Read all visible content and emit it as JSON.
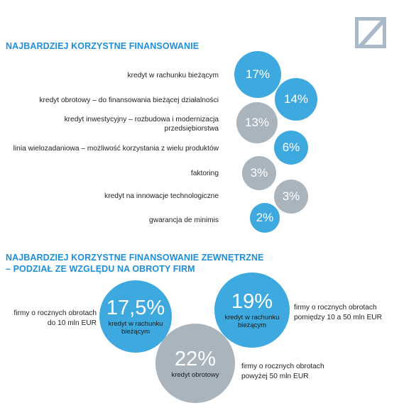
{
  "logo": "deutsche-bank-logo",
  "colors": {
    "accent": "#1e8fd8",
    "blue_bubble": "#3ea9de",
    "grey_bubble": "#a9b4bd"
  },
  "chart_data": [
    {
      "type": "bubble",
      "title": "NAJBARDZIEJ KORZYSTNE FINANSOWANIE",
      "unit": "%",
      "categories": [
        "kredyt w rachunku bieżącym",
        "kredyt obrotowy – do finansowania bieżącej działalności",
        "kredyt inwestycyjny – rozbudowa i modernizacja przedsiębiorstwa",
        "linia wielozadaniowa – możliwość korzystania z wielu produktów",
        "faktoring",
        "kredyt na innowacje technologiczne",
        "gwarancja de minimis"
      ],
      "values": [
        17,
        14,
        13,
        6,
        3,
        3,
        2
      ],
      "labels": [
        "17%",
        "14%",
        "13%",
        "6%",
        "3%",
        "3%",
        "2%"
      ],
      "colors": [
        "blue",
        "blue",
        "grey",
        "blue",
        "grey",
        "grey",
        "blue"
      ]
    },
    {
      "type": "bubble",
      "title_line1": "NAJBARDZIEJ KORZYSTNE FINANSOWANIE ZEWNĘTRZNE",
      "title_line2": "– PODZIAŁ ZE WZGLĘDU NA OBROTY FIRM",
      "unit": "%",
      "segments": [
        {
          "segment_line1": "firmy o rocznych obrotach",
          "segment_line2": "do 10 mln EUR",
          "value": 17.5,
          "label": "17,5%",
          "product_line1": "kredyt w rachunku",
          "product_line2": "bieżącym",
          "color": "blue"
        },
        {
          "segment_line1": "firmy o rocznych obrotach",
          "segment_line2": "pomiędzy 10 a 50 mln EUR",
          "value": 19,
          "label": "19%",
          "product_line1": "kredyt w rachunku",
          "product_line2": "bieżącym",
          "color": "blue"
        },
        {
          "segment_line1": "firmy o rocznych obrotach",
          "segment_line2": "powyżej 50 mln EUR",
          "value": 22,
          "label": "22%",
          "product_line1": "kredyt obrotowy",
          "product_line2": "",
          "color": "grey"
        }
      ]
    }
  ],
  "row_label_extra": "przedsiębiorstwa"
}
